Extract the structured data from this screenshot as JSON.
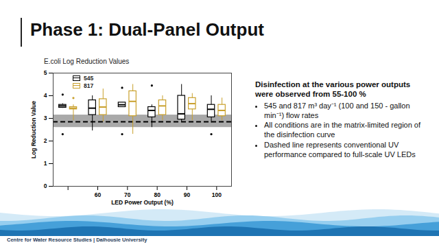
{
  "slide": {
    "title": "Phase 1: Dual-Panel Output",
    "footer": "Centre for Water Resource Studies | Dalhousie University",
    "text": {
      "heading": "Disinfection at the various power outputs were observed from 55-100 %",
      "bullets": [
        "545 and 817 m³ day⁻¹ (100 and 150 - gallon min⁻¹) flow rates",
        "All conditions are in the matrix-limited region of the disinfection curve",
        "Dashed line represents conventional UV performance compared to full-scale UV LEDs"
      ]
    }
  },
  "chart_data": {
    "type": "box",
    "title": "E.coli Log Reduction Values",
    "x_label": "LED Power Output (%)",
    "y_label": "Log Reduction Value",
    "categories": [
      null,
      "60",
      "70",
      "80",
      "90",
      "100"
    ],
    "ylim": [
      0,
      5
    ],
    "yticks": [
      0,
      1,
      2,
      3,
      4,
      5
    ],
    "grid": false,
    "legend": "top-left",
    "reference": {
      "value": 2.85,
      "low": 2.6,
      "high": 3.15,
      "line_style": "dashed"
    },
    "series": [
      {
        "name": "545",
        "color": "#000000",
        "min": [
          3.45,
          2.45,
          3.5,
          2.6,
          2.85,
          2.8
        ],
        "q1": [
          3.47,
          3.15,
          3.5,
          3.05,
          2.95,
          3.05
        ],
        "median": [
          3.55,
          3.45,
          3.6,
          3.35,
          3.2,
          3.4
        ],
        "q3": [
          3.6,
          3.8,
          3.7,
          3.5,
          4.0,
          3.6
        ],
        "max": [
          3.65,
          4.0,
          3.7,
          3.6,
          4.5,
          4.0
        ],
        "outliers": [
          [
            4.05,
            2.3
          ],
          [],
          [
            4.35,
            2.3
          ],
          [
            4.45
          ],
          [],
          [
            2.3
          ]
        ]
      },
      {
        "name": "817",
        "color": "#c9a02c",
        "min": [
          2.9,
          2.85,
          2.3,
          2.9,
          2.9,
          2.9
        ],
        "q1": [
          3.4,
          3.15,
          3.1,
          3.15,
          3.4,
          3.1
        ],
        "median": [
          3.45,
          3.5,
          3.75,
          3.55,
          3.65,
          3.35
        ],
        "q3": [
          3.5,
          3.85,
          4.2,
          3.8,
          3.9,
          3.6
        ],
        "max": [
          3.6,
          4.3,
          4.5,
          4.0,
          4.1,
          3.9
        ],
        "outliers": [
          [
            3.9
          ],
          [],
          [],
          [],
          [],
          []
        ]
      }
    ]
  }
}
